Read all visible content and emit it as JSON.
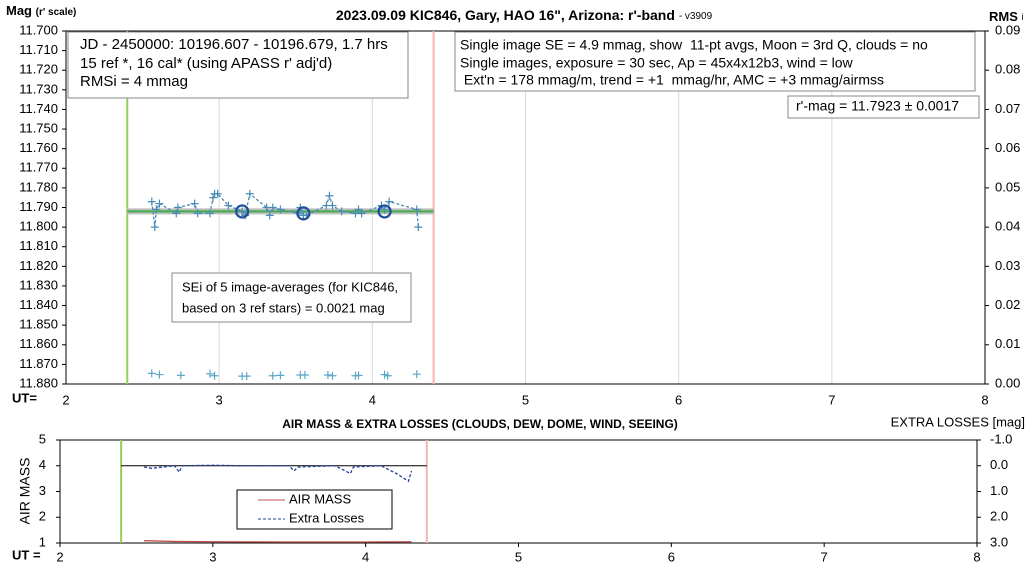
{
  "chart_data": [
    {
      "type": "scatter",
      "title": "2023.09.09 KIC846, Gary, HAO 16\", Arizona: r'-band",
      "subtitle": "- v3909",
      "ylabel": "Mag",
      "ylabel_note": "(r' scale)",
      "y2label": "RMS",
      "y2label_note": "i",
      "xlabel": "UT=",
      "xlim": [
        2,
        8
      ],
      "xticks": [
        2,
        3,
        4,
        5,
        6,
        7,
        8
      ],
      "grid": "x",
      "ylim": [
        11.7,
        11.88
      ],
      "invert_y": true,
      "yticks": [
        {
          "value": 11.7,
          "label": "11.700"
        },
        {
          "value": 11.71,
          "label": "11.710"
        },
        {
          "value": 11.72,
          "label": "11.720"
        },
        {
          "value": 11.73,
          "label": "11.730"
        },
        {
          "value": 11.74,
          "label": "11.740"
        },
        {
          "value": 11.75,
          "label": "11.750"
        },
        {
          "value": 11.76,
          "label": "11.760"
        },
        {
          "value": 11.77,
          "label": "11.770"
        },
        {
          "value": 11.78,
          "label": "11.780"
        },
        {
          "value": 11.79,
          "label": "11.790"
        },
        {
          "value": 11.8,
          "label": "11.800"
        },
        {
          "value": 11.81,
          "label": "11.810"
        },
        {
          "value": 11.82,
          "label": "11.820"
        },
        {
          "value": 11.83,
          "label": "11.830"
        },
        {
          "value": 11.84,
          "label": "11.840"
        },
        {
          "value": 11.85,
          "label": "11.850"
        },
        {
          "value": 11.86,
          "label": "11.860"
        },
        {
          "value": 11.87,
          "label": "11.870"
        },
        {
          "value": 11.88,
          "label": "11.880"
        }
      ],
      "y2lim": [
        0,
        0.09
      ],
      "y2ticks": [
        {
          "value": 0,
          "label": "0.00"
        },
        0.01,
        0.02,
        0.03,
        0.04,
        0.05,
        0.06,
        0.07,
        0.08,
        0.09
      ],
      "vlines": [
        {
          "x": 2.4,
          "color": "#8fd05a"
        },
        {
          "x": 4.4,
          "color": "#f4b4b4"
        }
      ],
      "series": [
        {
          "marker": "none",
          "line": "solid",
          "color": "#3fae49",
          "halo_color": "#bdbdbd",
          "x": [
            2.4,
            4.4
          ],
          "values": [
            11.792,
            11.792
          ]
        },
        {
          "marker": "plus",
          "line": "dashed",
          "color": "#4a8bb8",
          "x": [
            2.56,
            2.58,
            2.59,
            2.61,
            2.72,
            2.73,
            2.84,
            2.86,
            2.94,
            2.96,
            2.97,
            2.99,
            3.06,
            3.15,
            3.17,
            3.2,
            3.31,
            3.33,
            3.35,
            3.4,
            3.52,
            3.53,
            3.55,
            3.57,
            3.7,
            3.72,
            3.74,
            3.8,
            3.89,
            3.91,
            3.93,
            4.06,
            4.08,
            4.11,
            4.29,
            4.3
          ],
          "values": [
            11.787,
            11.8,
            11.791,
            11.788,
            11.793,
            11.79,
            11.788,
            11.793,
            11.793,
            11.785,
            11.783,
            11.783,
            11.789,
            11.792,
            11.794,
            11.783,
            11.79,
            11.794,
            11.79,
            11.791,
            11.793,
            11.79,
            11.794,
            11.794,
            11.789,
            11.784,
            11.789,
            11.792,
            11.793,
            11.791,
            11.793,
            11.789,
            11.791,
            11.787,
            11.791,
            11.8
          ]
        },
        {
          "marker": "circle",
          "line": "none",
          "color": "#1f4e9c",
          "x": [
            3.15,
            3.55,
            4.08
          ],
          "values": [
            11.792,
            11.793,
            11.792
          ]
        },
        {
          "marker": "plus",
          "line": "none",
          "color": "#5ea6c8",
          "axis": "y2",
          "x": [
            2.56,
            2.61,
            2.75,
            2.94,
            2.97,
            3.15,
            3.18,
            3.35,
            3.4,
            3.53,
            3.56,
            3.71,
            3.74,
            3.89,
            3.91,
            4.08,
            4.1,
            4.29
          ],
          "values": [
            0.0027,
            0.0024,
            0.0022,
            0.0026,
            0.0021,
            0.002,
            0.002,
            0.0021,
            0.0022,
            0.0023,
            0.0023,
            0.0023,
            0.0021,
            0.0021,
            0.0022,
            0.0024,
            0.0021,
            0.0025
          ]
        }
      ],
      "annotations": [
        [
          "JD - 2450000: 10196.607 - 10196.679, 1.7 hrs",
          "15 ref *, 16 cal* (using APASS r' adj'd)",
          "RMSi = 4 mmag"
        ],
        [
          "Single image SE = 4.9 mmag, show  11-pt avgs, Moon = 3rd Q, clouds = no",
          "Single images, exposure = 30 sec, Ap = 45x4x12b3, wind = low",
          " Ext'n = 178 mmag/m, trend = +1  mmag/hr, AMC = +3 mmag/airmss"
        ],
        [
          "r'-mag = 11.7923 ± 0.0017"
        ],
        [
          "SEi of 5 image-averages (for KIC846,",
          "based on 3 ref stars) = 0.0021 mag"
        ]
      ]
    },
    {
      "type": "line",
      "title": "AIR MASS & EXTRA LOSSES (CLOUDS, DEW, DOME, WIND, SEEING)",
      "ylabel": "AIR MASS",
      "y2label": "EXTRA LOSSES [mag]",
      "xlabel": "UT =",
      "xlim": [
        2,
        8
      ],
      "xticks": [
        2,
        3,
        4,
        5,
        6,
        7,
        8
      ],
      "ylim": [
        1,
        5
      ],
      "yticks": [
        1,
        2,
        3,
        4,
        5
      ],
      "y2lim": [
        -1,
        3
      ],
      "invert_y2": true,
      "y2ticks": [
        {
          "value": -1,
          "label": "-1.0"
        },
        {
          "value": 0,
          "label": "0.0"
        },
        {
          "value": 1,
          "label": "1.0"
        },
        {
          "value": 2,
          "label": "2.0"
        },
        {
          "value": 3,
          "label": "3.0"
        }
      ],
      "vlines": [
        {
          "x": 2.4,
          "color": "#8fd05a"
        },
        {
          "x": 4.4,
          "color": "#f4b4b4"
        }
      ],
      "hline": {
        "value": 0,
        "axis": "y2",
        "x": [
          2.4,
          4.4
        ],
        "color": "#000000"
      },
      "series": [
        {
          "name": "AIR MASS",
          "color": "#c0504d",
          "line": "solid",
          "x": [
            2.55,
            2.75,
            3.0,
            3.5,
            4.0,
            4.3
          ],
          "values": [
            1.09,
            1.06,
            1.05,
            1.04,
            1.04,
            1.05
          ]
        },
        {
          "name": "Extra Losses",
          "color": "#1f3fa0",
          "line": "dashed",
          "axis": "y2",
          "x": [
            2.55,
            2.6,
            2.75,
            2.78,
            2.8,
            3.0,
            3.2,
            3.5,
            3.53,
            3.56,
            3.8,
            3.9,
            3.92,
            4.1,
            4.2,
            4.28,
            4.3
          ],
          "values": [
            0.05,
            0.1,
            0.0,
            0.25,
            0.0,
            -0.02,
            0.0,
            0.0,
            0.2,
            0.05,
            0.0,
            0.3,
            0.05,
            0.0,
            0.3,
            0.6,
            0.2
          ]
        }
      ]
    }
  ]
}
